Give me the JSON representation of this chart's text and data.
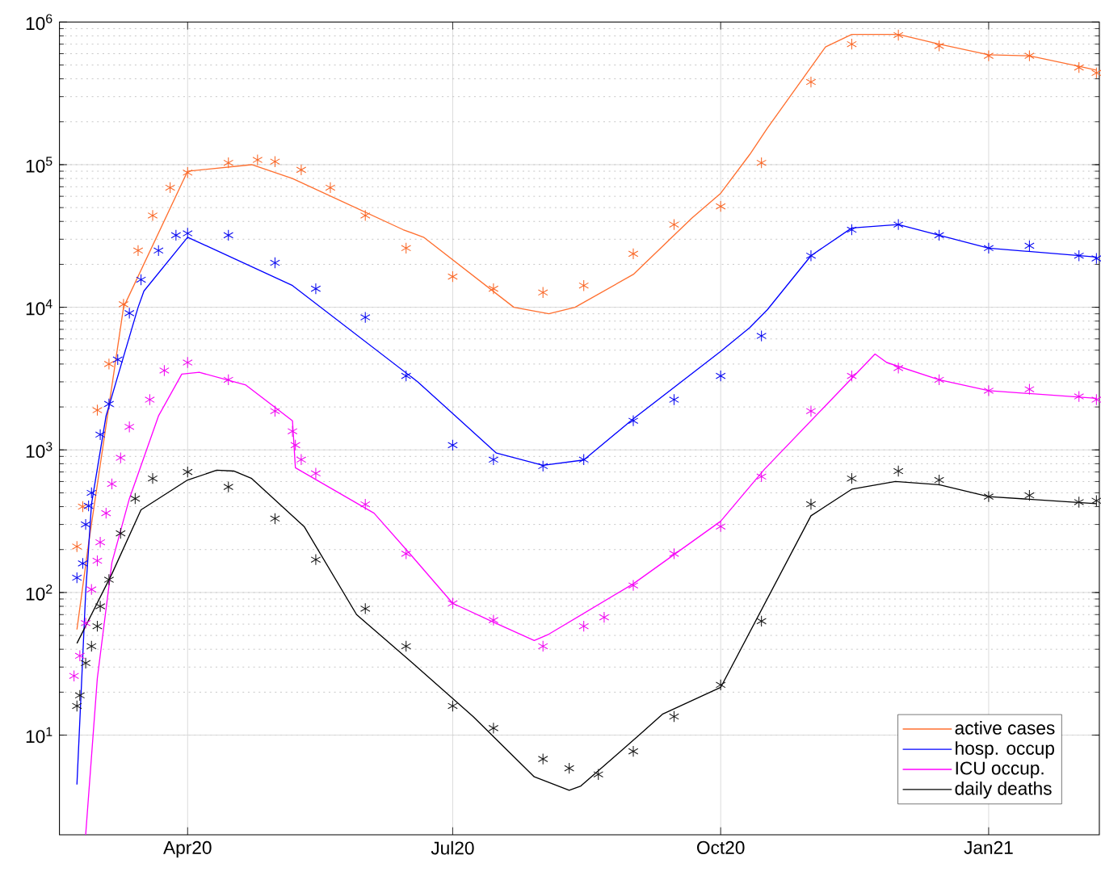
{
  "chart_data": {
    "type": "line",
    "log": "y",
    "grid": true,
    "legend": "bottom right",
    "xlim": [
      "2020-02-17",
      "2021-02-08"
    ],
    "xticks": [
      {
        "value": "2020-04-01",
        "label": "Apr20"
      },
      {
        "value": "2020-07-01",
        "label": "Jul20"
      },
      {
        "value": "2020-10-01",
        "label": "Oct20"
      },
      {
        "value": "2021-01-01",
        "label": "Jan21"
      }
    ],
    "ylim": [
      2,
      1000000
    ],
    "yticks": [
      {
        "value": 10,
        "label": "10$^{1}$"
      },
      {
        "value": 100,
        "label": "10$^{2}$"
      },
      {
        "value": 1000,
        "label": "10$^{3}$"
      },
      {
        "value": 10000,
        "label": "10$^{4}$"
      },
      {
        "value": 100000,
        "label": "10$^{5}$"
      },
      {
        "value": 1000000,
        "label": "10$^{6}$"
      }
    ],
    "series": [
      {
        "type": "scatter",
        "marker": "cross",
        "color": "#f96828",
        "x": [
          "2020-02-23",
          "2020-02-25",
          "2020-03-01",
          "2020-03-05",
          "2020-03-10",
          "2020-03-15",
          "2020-03-20",
          "2020-03-26",
          "2020-04-01",
          "2020-04-15",
          "2020-04-25",
          "2020-05-01",
          "2020-05-10",
          "2020-05-20",
          "2020-06-01",
          "2020-06-15",
          "2020-07-01",
          "2020-07-15",
          "2020-08-01",
          "2020-08-15",
          "2020-09-01",
          "2020-09-15",
          "2020-10-01",
          "2020-10-15",
          "2020-11-01",
          "2020-11-15",
          "2020-12-01",
          "2020-12-15",
          "2021-01-01",
          "2021-01-15",
          "2021-02-01",
          "2021-02-07"
        ],
        "values": [
          210,
          400,
          1900,
          4000,
          10500,
          25000,
          44000,
          69000,
          88000,
          103000,
          108000,
          105000,
          92000,
          69000,
          44000,
          26000,
          16400,
          13500,
          12700,
          14200,
          23700,
          38000,
          51000,
          103000,
          380000,
          700000,
          810000,
          680000,
          580000,
          580000,
          480000,
          440000
        ]
      },
      {
        "type": "scatter",
        "marker": "cross",
        "color": "#0a0af0",
        "x": [
          "2020-02-23",
          "2020-02-25",
          "2020-02-26",
          "2020-02-27",
          "2020-02-28",
          "2020-03-02",
          "2020-03-05",
          "2020-03-08",
          "2020-03-12",
          "2020-03-16",
          "2020-03-22",
          "2020-03-28",
          "2020-04-01",
          "2020-04-15",
          "2020-05-01",
          "2020-05-15",
          "2020-06-01",
          "2020-06-15",
          "2020-07-01",
          "2020-07-15",
          "2020-08-01",
          "2020-08-15",
          "2020-09-01",
          "2020-09-15",
          "2020-10-01",
          "2020-10-15",
          "2020-11-01",
          "2020-11-15",
          "2020-12-01",
          "2020-12-15",
          "2021-01-01",
          "2021-01-15",
          "2021-02-01",
          "2021-02-07"
        ],
        "values": [
          127,
          160,
          300,
          405,
          500,
          1280,
          2100,
          4300,
          9100,
          15600,
          25000,
          32000,
          33000,
          32000,
          20500,
          13500,
          8500,
          3300,
          1080,
          855,
          770,
          855,
          1600,
          2250,
          3300,
          6300,
          23000,
          35000,
          38000,
          32000,
          26000,
          27000,
          23000,
          22000
        ]
      },
      {
        "type": "scatter",
        "marker": "cross",
        "color": "#f00af0",
        "x": [
          "2020-02-22",
          "2020-02-24",
          "2020-02-26",
          "2020-02-28",
          "2020-03-01",
          "2020-03-02",
          "2020-03-04",
          "2020-03-06",
          "2020-03-09",
          "2020-03-12",
          "2020-03-19",
          "2020-03-24",
          "2020-04-01",
          "2020-04-15",
          "2020-05-01",
          "2020-05-07",
          "2020-05-08",
          "2020-05-10",
          "2020-05-15",
          "2020-06-01",
          "2020-06-15",
          "2020-07-01",
          "2020-07-15",
          "2020-08-01",
          "2020-08-15",
          "2020-08-22",
          "2020-09-01",
          "2020-09-15",
          "2020-10-01",
          "2020-10-15",
          "2020-11-01",
          "2020-11-15",
          "2020-12-01",
          "2020-12-15",
          "2021-01-01",
          "2021-01-15",
          "2021-02-01",
          "2021-02-07"
        ],
        "values": [
          26,
          36,
          61,
          105,
          167,
          225,
          360,
          577,
          880,
          1450,
          2250,
          3600,
          4100,
          3100,
          1870,
          1350,
          1080,
          855,
          685,
          415,
          187,
          84,
          64,
          42,
          58,
          67,
          112,
          187,
          290,
          650,
          1870,
          3300,
          3750,
          3100,
          2600,
          2660,
          2370,
          2250
        ]
      },
      {
        "type": "scatter",
        "marker": "cross",
        "color": "#1a1a1a",
        "x": [
          "2020-02-23",
          "2020-02-24",
          "2020-02-26",
          "2020-02-28",
          "2020-03-01",
          "2020-03-02",
          "2020-03-05",
          "2020-03-09",
          "2020-03-14",
          "2020-03-20",
          "2020-04-01",
          "2020-04-15",
          "2020-05-01",
          "2020-05-15",
          "2020-06-01",
          "2020-06-15",
          "2020-07-01",
          "2020-07-15",
          "2020-08-01",
          "2020-08-10",
          "2020-08-20",
          "2020-09-01",
          "2020-09-15",
          "2020-10-01",
          "2020-10-15",
          "2020-11-01",
          "2020-11-15",
          "2020-12-01",
          "2020-12-15",
          "2021-01-01",
          "2021-01-15",
          "2021-02-01",
          "2021-02-07"
        ],
        "values": [
          16,
          19,
          32,
          42,
          58,
          80,
          123,
          260,
          455,
          630,
          700,
          550,
          330,
          170,
          77,
          42,
          16,
          11.2,
          6.8,
          5.85,
          5.3,
          7.7,
          13.5,
          22.5,
          63,
          416,
          630,
          710,
          615,
          470,
          480,
          430,
          440
        ]
      },
      {
        "type": "line",
        "marker": "none",
        "name": "active cases",
        "color": "#ff6f2f",
        "x": [
          "2020-02-23",
          "2020-02-27",
          "2020-03-10",
          "2020-04-01",
          "2020-04-23",
          "2020-05-07",
          "2020-06-14",
          "2020-06-21",
          "2020-07-22",
          "2020-08-03",
          "2020-08-12",
          "2020-09-01",
          "2020-09-21",
          "2020-10-01",
          "2020-10-11",
          "2020-10-17",
          "2020-11-06",
          "2020-11-15",
          "2020-12-01",
          "2020-12-15",
          "2021-01-01",
          "2021-01-15",
          "2021-02-01",
          "2021-02-07"
        ],
        "values": [
          55,
          220,
          10000,
          90000,
          100000,
          80000,
          35000,
          31000,
          10000,
          9000,
          10000,
          17000,
          42000,
          63000,
          118000,
          180000,
          670000,
          820000,
          820000,
          700000,
          590000,
          580000,
          490000,
          460000
        ]
      },
      {
        "type": "line",
        "marker": "none",
        "name": "hosp. occup",
        "color": "#0000ff",
        "x": [
          "2020-02-23",
          "2020-02-26",
          "2020-02-28",
          "2020-03-04",
          "2020-03-15",
          "2020-03-17",
          "2020-04-01",
          "2020-05-07",
          "2020-06-19",
          "2020-07-16",
          "2020-08-01",
          "2020-08-15",
          "2020-09-01",
          "2020-10-01",
          "2020-10-11",
          "2020-10-17",
          "2020-11-01",
          "2020-11-15",
          "2020-12-01",
          "2020-12-15",
          "2021-01-01",
          "2021-02-07"
        ],
        "values": [
          4.5,
          100,
          417,
          1730,
          10000,
          13000,
          31000,
          14200,
          3000,
          950,
          780,
          850,
          1650,
          4900,
          7200,
          9600,
          23000,
          36000,
          38000,
          32000,
          26000,
          22500
        ]
      },
      {
        "type": "line",
        "marker": "none",
        "name": "ICU occup.",
        "color": "#ff00ff",
        "x": [
          "2020-02-26",
          "2020-03-01",
          "2020-03-06",
          "2020-03-12",
          "2020-03-22",
          "2020-03-30",
          "2020-04-05",
          "2020-04-21",
          "2020-05-07",
          "2020-05-08",
          "2020-06-04",
          "2020-06-17",
          "2020-07-01",
          "2020-07-15",
          "2020-07-29",
          "2020-08-03",
          "2020-09-01",
          "2020-10-01",
          "2020-10-16",
          "2020-11-23",
          "2020-11-27",
          "2020-12-15",
          "2021-01-01",
          "2021-02-07"
        ],
        "values": [
          2,
          25,
          162,
          455,
          1730,
          3400,
          3500,
          2850,
          1600,
          750,
          360,
          180,
          84,
          62,
          46,
          51,
          115,
          316,
          730,
          4700,
          4100,
          3100,
          2600,
          2300
        ]
      },
      {
        "type": "line",
        "marker": "none",
        "name": "daily deaths",
        "color": "#000000",
        "x": [
          "2020-02-23",
          "2020-03-06",
          "2020-03-16",
          "2020-04-01",
          "2020-04-11",
          "2020-04-17",
          "2020-04-23",
          "2020-05-11",
          "2020-05-29",
          "2020-06-18",
          "2020-07-08",
          "2020-07-29",
          "2020-08-10",
          "2020-08-14",
          "2020-09-03",
          "2020-09-11",
          "2020-10-01",
          "2020-11-01",
          "2020-11-15",
          "2020-11-30",
          "2020-12-15",
          "2021-01-01",
          "2021-02-07"
        ],
        "values": [
          44,
          135,
          380,
          615,
          720,
          710,
          630,
          290,
          70,
          31,
          13.5,
          5.1,
          4.1,
          4.4,
          10,
          14,
          21.6,
          345,
          530,
          600,
          570,
          470,
          420
        ]
      }
    ]
  }
}
